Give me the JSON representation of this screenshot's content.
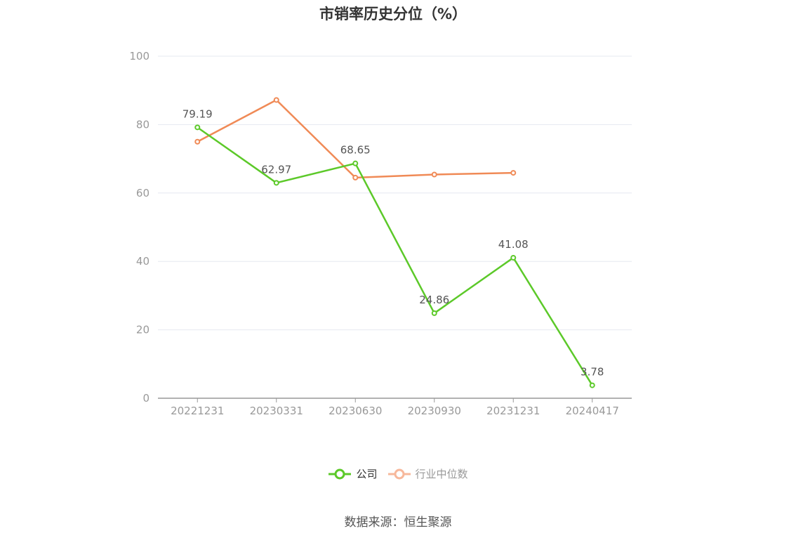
{
  "chart_data": {
    "type": "line",
    "title": "市销率历史分位（%）",
    "categories": [
      "20221231",
      "20230331",
      "20230630",
      "20230930",
      "20231231",
      "20240417"
    ],
    "ylim": [
      0,
      100
    ],
    "yticks": [
      0,
      20,
      40,
      60,
      80,
      100
    ],
    "grid": true,
    "legend_position": "bottom",
    "series": [
      {
        "name": "公司",
        "color": "#5cc929",
        "values": [
          79.19,
          62.97,
          68.65,
          24.86,
          41.08,
          3.78
        ],
        "labels": [
          "79.19",
          "62.97",
          "68.65",
          "24.86",
          "41.08",
          "3.78"
        ]
      },
      {
        "name": "行业中位数",
        "color": "#f08a56",
        "legend_color": "#f7b89b",
        "values": [
          75.0,
          87.2,
          64.5,
          65.4,
          65.9,
          null
        ]
      }
    ]
  },
  "source_note": "数据来源：恒生聚源"
}
